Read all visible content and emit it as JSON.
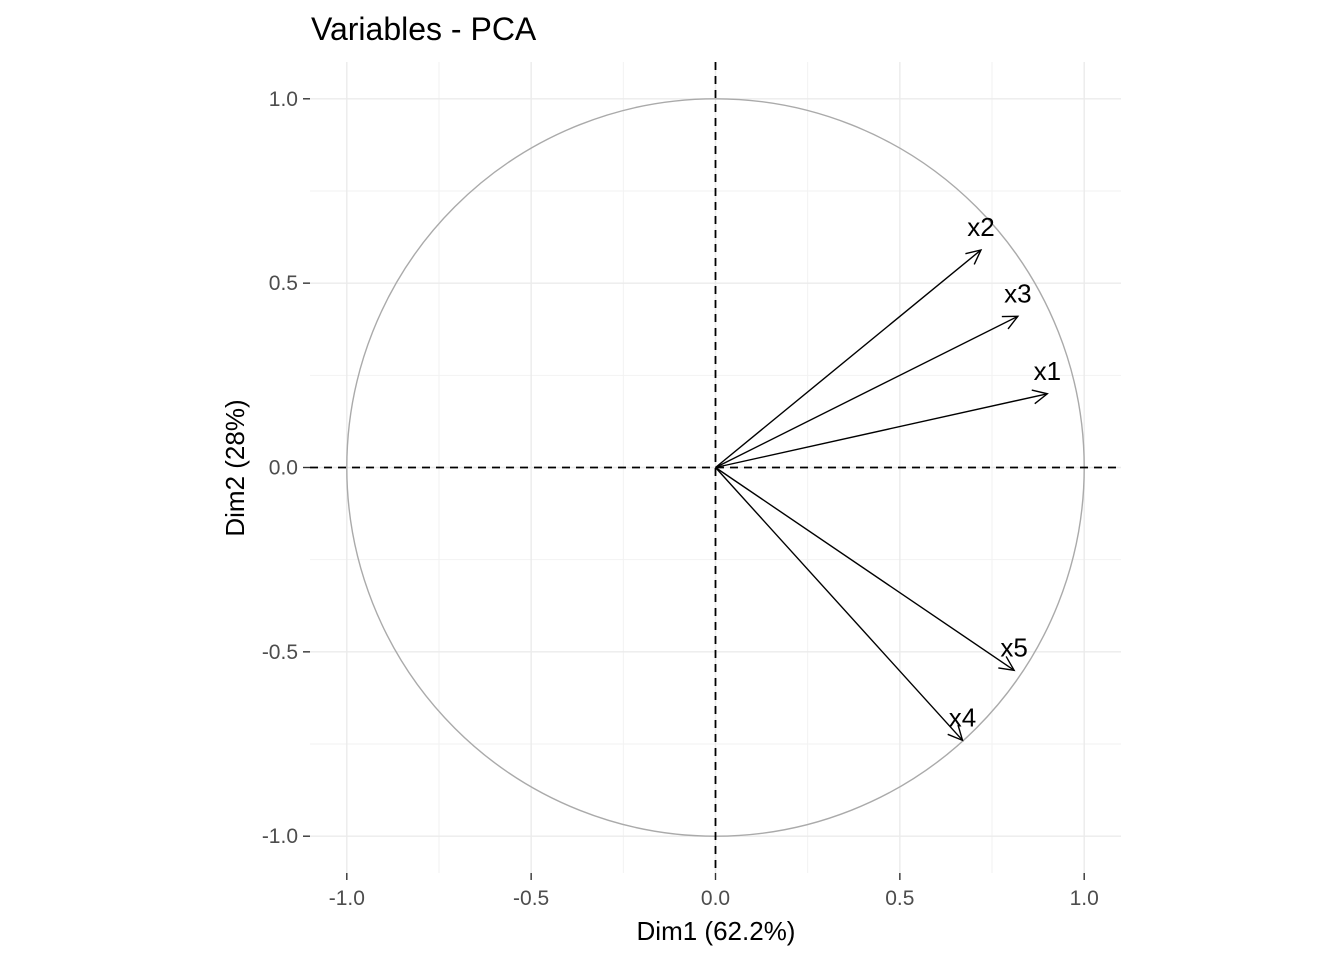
{
  "chart_data": {
    "type": "scatter",
    "subtype": "pca-correlation-circle",
    "title": "Variables - PCA",
    "xlabel": "Dim1 (62.2%)",
    "ylabel": "Dim2 (28%)",
    "xlim": [
      -1.1,
      1.1
    ],
    "ylim": [
      -1.1,
      1.1
    ],
    "x_ticks": [
      -1.0,
      -0.5,
      0.0,
      0.5,
      1.0
    ],
    "y_ticks": [
      -1.0,
      -0.5,
      0.0,
      0.5,
      1.0
    ],
    "x_tick_labels": [
      "-1.0",
      "-0.5",
      "0.0",
      "0.5",
      "1.0"
    ],
    "y_tick_labels": [
      "-1.0",
      "-0.5",
      "0.0",
      "0.5",
      "1.0"
    ],
    "grid": true,
    "legend": "none",
    "unit_circle": true,
    "reference_lines": [
      0,
      0
    ],
    "colors": {
      "arrow": "#000000",
      "circle": "#aaaaaa",
      "grid_major": "#ebebeb",
      "grid_minor": "#f2f2f2",
      "tick_text": "#4d4d4d"
    },
    "variables": [
      {
        "name": "x1",
        "x": 0.9,
        "y": 0.2
      },
      {
        "name": "x2",
        "x": 0.72,
        "y": 0.59
      },
      {
        "name": "x3",
        "x": 0.82,
        "y": 0.41
      },
      {
        "name": "x4",
        "x": 0.67,
        "y": -0.74
      },
      {
        "name": "x5",
        "x": 0.81,
        "y": -0.55
      }
    ]
  }
}
